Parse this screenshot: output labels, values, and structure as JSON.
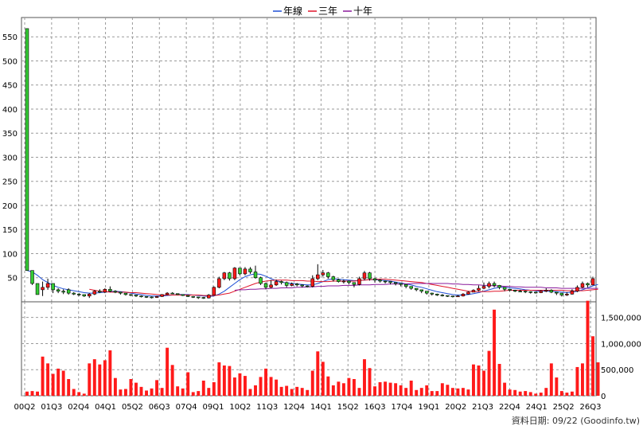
{
  "chart_data": [
    {
      "type": "candlestick",
      "title": "",
      "legend": {
        "placement": "top-center",
        "items": [
          {
            "label": "年線",
            "color": "#1f4fd6"
          },
          {
            "label": "三年",
            "color": "#e0152a"
          },
          {
            "label": "十年",
            "color": "#8a1a9c"
          }
        ]
      },
      "y_ticks": [
        "50",
        "100",
        "150",
        "200",
        "250",
        "300",
        "350",
        "400",
        "450",
        "500",
        "550"
      ],
      "ylim": [
        0,
        590
      ],
      "grid": true,
      "x_ticks": [
        "00Q2",
        "01Q3",
        "02Q4",
        "04Q1",
        "05Q2",
        "06Q3",
        "07Q4",
        "09Q1",
        "10Q2",
        "11Q3",
        "12Q4",
        "14Q1",
        "15Q2",
        "16Q3",
        "17Q4",
        "19Q1",
        "20Q2",
        "21Q3",
        "22Q4",
        "24Q1",
        "25Q2",
        "26Q3"
      ],
      "up_color": "#33cc33",
      "down_color": "#ff1a1a",
      "candles": [
        [
          65,
          567,
          565,
          65
        ],
        [
          38,
          65,
          65,
          35
        ],
        [
          15,
          38,
          38,
          15
        ],
        [
          30,
          25,
          42,
          12
        ],
        [
          38,
          30,
          48,
          25
        ],
        [
          25,
          38,
          38,
          18
        ],
        [
          22,
          25,
          28,
          18
        ],
        [
          20,
          22,
          26,
          16
        ],
        [
          18,
          25,
          28,
          15
        ],
        [
          16,
          18,
          20,
          14
        ],
        [
          15,
          16,
          18,
          12
        ],
        [
          12,
          15,
          15,
          10
        ],
        [
          16,
          12,
          18,
          8
        ],
        [
          22,
          16,
          24,
          14
        ],
        [
          20,
          22,
          26,
          18
        ],
        [
          26,
          20,
          28,
          18
        ],
        [
          22,
          26,
          32,
          20
        ],
        [
          20,
          22,
          24,
          18
        ],
        [
          18,
          20,
          20,
          15
        ],
        [
          15,
          18,
          18,
          13
        ],
        [
          14,
          15,
          16,
          12
        ],
        [
          12,
          14,
          14,
          10
        ],
        [
          11,
          12,
          13,
          9
        ],
        [
          10,
          11,
          11,
          8
        ],
        [
          9,
          10,
          11,
          7
        ],
        [
          11,
          9,
          12,
          8
        ],
        [
          15,
          11,
          16,
          10
        ],
        [
          18,
          15,
          20,
          14
        ],
        [
          17,
          18,
          20,
          16
        ],
        [
          15,
          17,
          17,
          14
        ],
        [
          13,
          15,
          15,
          12
        ],
        [
          11,
          13,
          14,
          10
        ],
        [
          10,
          11,
          12,
          8
        ],
        [
          9,
          10,
          10,
          6
        ],
        [
          8,
          9,
          10,
          6
        ],
        [
          14,
          8,
          16,
          7
        ],
        [
          30,
          14,
          32,
          14
        ],
        [
          48,
          30,
          52,
          28
        ],
        [
          60,
          48,
          62,
          45
        ],
        [
          48,
          60,
          62,
          44
        ],
        [
          70,
          48,
          72,
          45
        ],
        [
          58,
          70,
          70,
          55
        ],
        [
          68,
          58,
          72,
          55
        ],
        [
          62,
          68,
          72,
          58
        ],
        [
          50,
          62,
          75,
          48
        ],
        [
          38,
          50,
          52,
          35
        ],
        [
          30,
          38,
          40,
          26
        ],
        [
          35,
          30,
          45,
          28
        ],
        [
          42,
          35,
          46,
          33
        ],
        [
          40,
          42,
          44,
          36
        ],
        [
          34,
          40,
          42,
          30
        ],
        [
          37,
          34,
          40,
          32
        ],
        [
          35,
          37,
          39,
          32
        ],
        [
          33,
          35,
          36,
          30
        ],
        [
          32,
          33,
          34,
          30
        ],
        [
          48,
          32,
          55,
          30
        ],
        [
          56,
          48,
          78,
          45
        ],
        [
          60,
          56,
          66,
          52
        ],
        [
          52,
          60,
          62,
          48
        ],
        [
          46,
          52,
          54,
          42
        ],
        [
          42,
          46,
          48,
          40
        ],
        [
          43,
          42,
          46,
          38
        ],
        [
          40,
          43,
          44,
          36
        ],
        [
          36,
          40,
          40,
          30
        ],
        [
          48,
          36,
          52,
          34
        ],
        [
          60,
          48,
          64,
          45
        ],
        [
          48,
          60,
          62,
          44
        ],
        [
          45,
          48,
          50,
          40
        ],
        [
          43,
          45,
          47,
          40
        ],
        [
          42,
          43,
          44,
          38
        ],
        [
          40,
          42,
          42,
          36
        ],
        [
          38,
          40,
          40,
          34
        ],
        [
          36,
          38,
          38,
          32
        ],
        [
          32,
          36,
          36,
          28
        ],
        [
          28,
          32,
          32,
          25
        ],
        [
          25,
          28,
          28,
          22
        ],
        [
          22,
          25,
          25,
          18
        ],
        [
          18,
          22,
          22,
          15
        ],
        [
          16,
          18,
          19,
          13
        ],
        [
          14,
          16,
          17,
          12
        ],
        [
          13,
          14,
          16,
          11
        ],
        [
          12,
          13,
          13,
          10
        ],
        [
          11,
          12,
          12,
          9
        ],
        [
          12,
          11,
          14,
          10
        ],
        [
          16,
          12,
          18,
          11
        ],
        [
          20,
          16,
          22,
          15
        ],
        [
          24,
          20,
          26,
          20
        ],
        [
          28,
          24,
          34,
          22
        ],
        [
          32,
          28,
          40,
          26
        ],
        [
          38,
          32,
          42,
          28
        ],
        [
          34,
          38,
          42,
          30
        ],
        [
          30,
          34,
          35,
          26
        ],
        [
          26,
          30,
          30,
          22
        ],
        [
          24,
          26,
          27,
          22
        ],
        [
          22,
          24,
          25,
          20
        ],
        [
          22,
          22,
          25,
          20
        ],
        [
          21,
          22,
          23,
          18
        ],
        [
          20,
          21,
          22,
          17
        ],
        [
          19,
          20,
          21,
          17
        ],
        [
          22,
          19,
          24,
          18
        ],
        [
          24,
          22,
          28,
          20
        ],
        [
          20,
          24,
          26,
          18
        ],
        [
          18,
          20,
          20,
          14
        ],
        [
          14,
          18,
          18,
          11
        ],
        [
          16,
          14,
          20,
          12
        ],
        [
          22,
          16,
          26,
          15
        ],
        [
          30,
          22,
          34,
          20
        ],
        [
          38,
          30,
          42,
          28
        ],
        [
          35,
          38,
          40,
          30
        ],
        [
          48,
          35,
          52,
          34
        ]
      ],
      "ma_year": [
        65,
        62,
        55,
        46,
        40,
        34,
        30,
        27,
        25,
        23,
        21,
        19,
        18,
        18,
        19,
        20,
        21,
        22,
        21,
        20,
        18,
        16,
        15,
        13,
        12,
        12,
        12,
        13,
        14,
        15,
        15,
        15,
        14,
        13,
        12,
        11,
        12,
        16,
        22,
        30,
        38,
        46,
        52,
        56,
        58,
        57,
        53,
        48,
        44,
        41,
        39,
        38,
        37,
        36,
        35,
        35,
        38,
        42,
        46,
        48,
        47,
        46,
        45,
        44,
        44,
        45,
        46,
        46,
        45,
        44,
        43,
        41,
        39,
        37,
        35,
        32,
        30,
        27,
        24,
        21,
        19,
        17,
        15,
        14,
        14,
        15,
        17,
        19,
        22,
        25,
        28,
        30,
        30,
        29,
        28,
        27,
        25,
        24,
        23,
        22,
        22,
        22,
        21,
        20,
        19,
        20,
        22,
        25,
        29,
        33,
        36
      ],
      "ma_3y": [
        null,
        null,
        null,
        null,
        null,
        null,
        null,
        null,
        null,
        null,
        null,
        null,
        26,
        24,
        22,
        21,
        20,
        20,
        20,
        20,
        19,
        19,
        18,
        17,
        16,
        15,
        14,
        14,
        14,
        14,
        14,
        14,
        14,
        14,
        13,
        13,
        13,
        14,
        16,
        18,
        22,
        26,
        30,
        34,
        38,
        41,
        43,
        44,
        45,
        45,
        45,
        44,
        44,
        44,
        43,
        43,
        42,
        42,
        42,
        43,
        43,
        43,
        43,
        43,
        44,
        45,
        46,
        47,
        47,
        47,
        46,
        45,
        44,
        43,
        42,
        41,
        40,
        38,
        36,
        34,
        32,
        30,
        28,
        26,
        24,
        22,
        21,
        21,
        21,
        21,
        22,
        22,
        23,
        24,
        24,
        24,
        24,
        24,
        24,
        24,
        24,
        24,
        24,
        24,
        23,
        23,
        23,
        23,
        24,
        25,
        26
      ],
      "ma_10y": [
        null,
        null,
        null,
        null,
        null,
        null,
        null,
        null,
        null,
        null,
        null,
        null,
        null,
        null,
        null,
        null,
        null,
        null,
        null,
        null,
        null,
        null,
        null,
        null,
        null,
        null,
        null,
        null,
        null,
        null,
        null,
        null,
        null,
        null,
        null,
        null,
        null,
        null,
        null,
        null,
        24,
        25,
        25,
        26,
        26,
        27,
        27,
        28,
        28,
        29,
        29,
        29,
        30,
        30,
        31,
        31,
        32,
        32,
        33,
        33,
        33,
        34,
        34,
        34,
        35,
        35,
        35,
        36,
        36,
        36,
        37,
        37,
        37,
        37,
        38,
        38,
        38,
        38,
        38,
        38,
        38,
        38,
        37,
        37,
        36,
        36,
        35,
        35,
        34,
        34,
        33,
        33,
        32,
        32,
        31,
        31,
        30,
        30,
        30,
        30,
        29,
        29,
        29,
        28,
        28,
        28,
        28,
        28,
        28,
        28,
        28
      ],
      "volume_yticks": [
        "0",
        "500,000",
        "1,000,000",
        "1,500,000"
      ],
      "volume_ylim": [
        0,
        1800000
      ],
      "volume_color": "#ff1a1a",
      "volume": [
        80000,
        90000,
        80000,
        750000,
        620000,
        420000,
        520000,
        480000,
        320000,
        130000,
        70000,
        40000,
        620000,
        700000,
        600000,
        680000,
        870000,
        340000,
        120000,
        130000,
        320000,
        250000,
        170000,
        100000,
        140000,
        300000,
        150000,
        920000,
        590000,
        180000,
        140000,
        450000,
        70000,
        90000,
        290000,
        150000,
        260000,
        640000,
        580000,
        570000,
        350000,
        430000,
        380000,
        130000,
        200000,
        360000,
        520000,
        360000,
        310000,
        170000,
        190000,
        130000,
        170000,
        150000,
        110000,
        480000,
        850000,
        650000,
        370000,
        200000,
        270000,
        240000,
        340000,
        320000,
        150000,
        700000,
        530000,
        180000,
        260000,
        270000,
        250000,
        240000,
        200000,
        150000,
        290000,
        110000,
        150000,
        200000,
        90000,
        90000,
        240000,
        210000,
        150000,
        140000,
        150000,
        120000,
        600000,
        580000,
        480000,
        860000,
        1650000,
        610000,
        250000,
        120000,
        110000,
        80000,
        90000,
        70000,
        40000,
        60000,
        150000,
        620000,
        350000,
        90000,
        60000,
        80000,
        550000,
        620000,
        1820000,
        1140000,
        640000
      ]
    }
  ],
  "footer": {
    "credit": "資料日期: 09/22 (Goodinfo.tw)"
  }
}
